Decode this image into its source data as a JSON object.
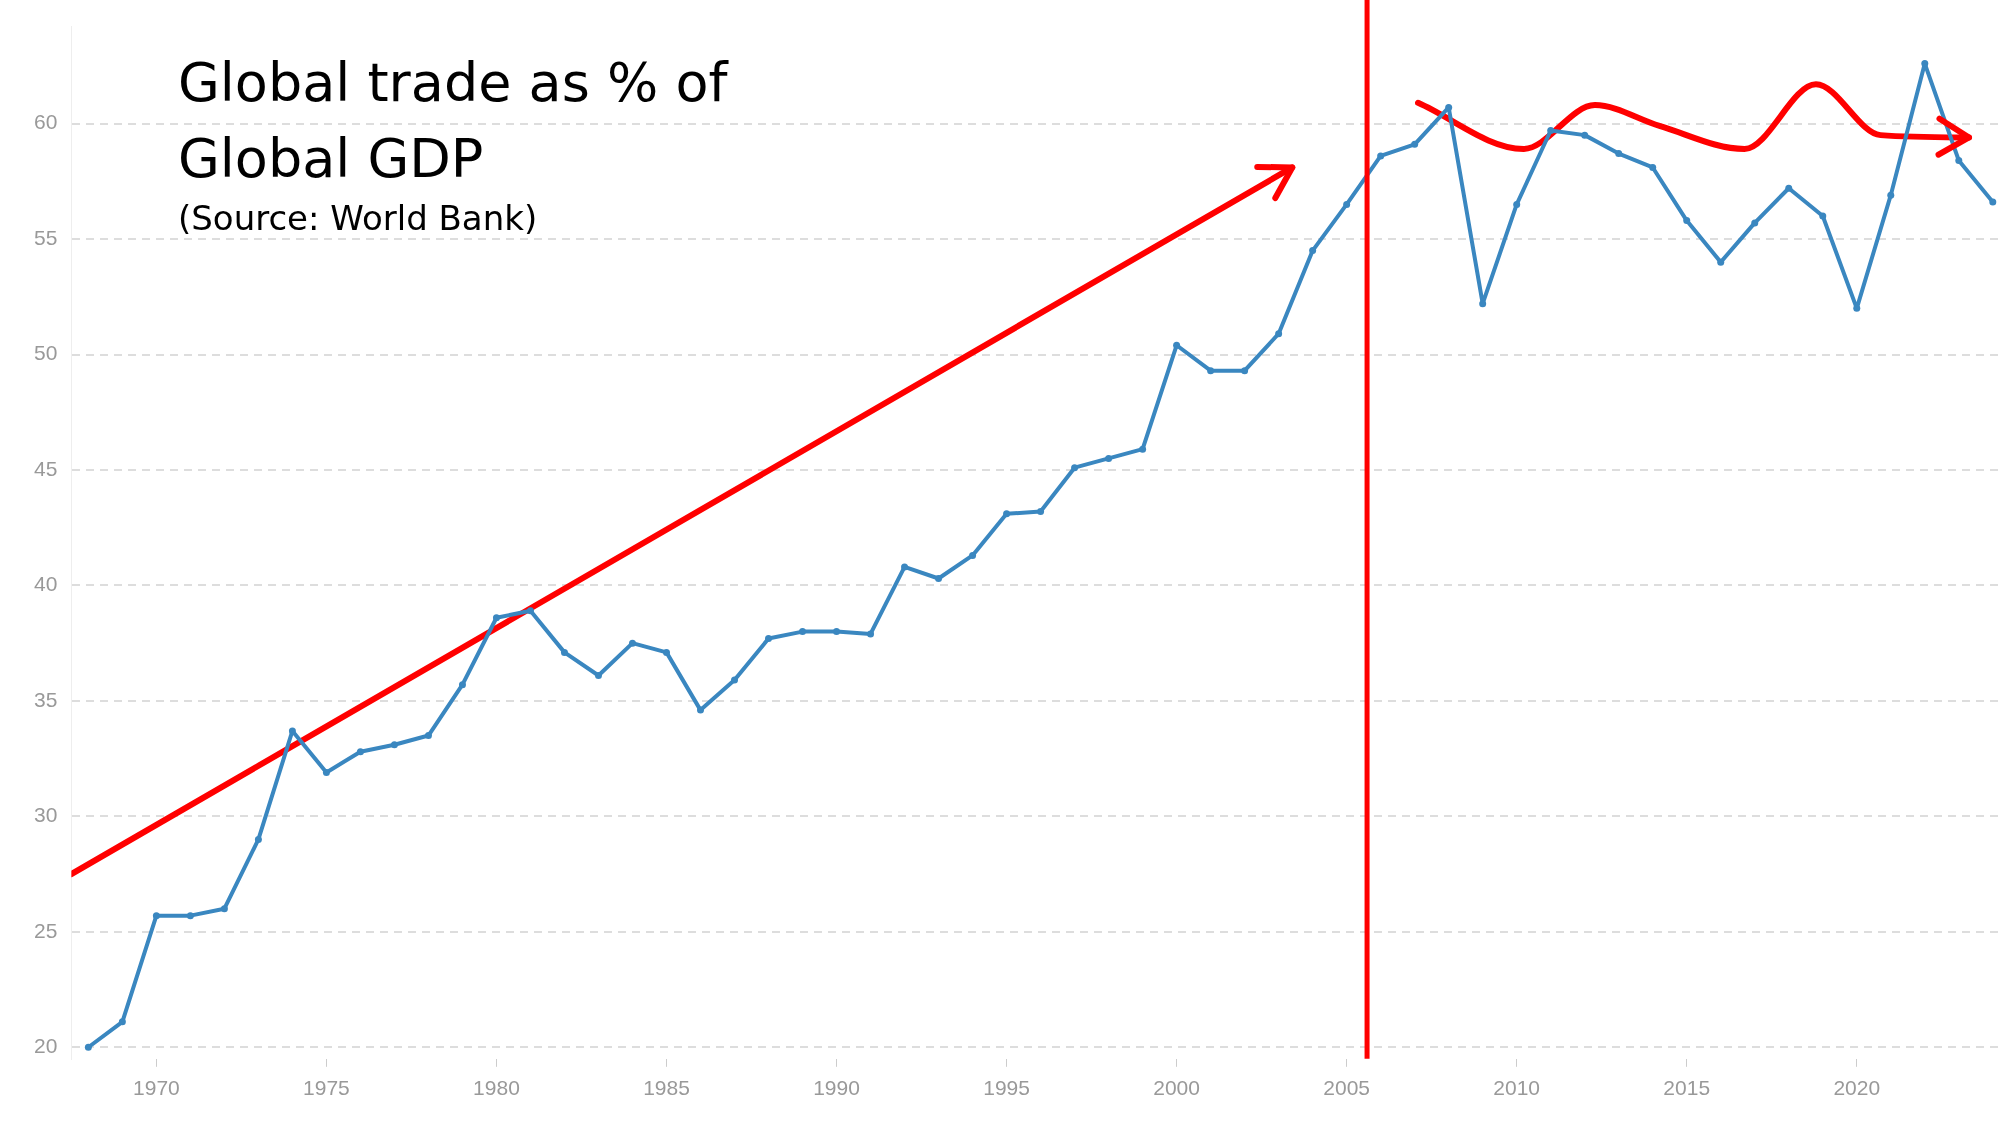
{
  "chart_data": {
    "type": "line",
    "title": "Global trade as % of Global GDP",
    "annotations": [
      "(Source: World Bank)"
    ],
    "x": [
      1968,
      1969,
      1970,
      1971,
      1972,
      1973,
      1974,
      1975,
      1976,
      1977,
      1978,
      1979,
      1980,
      1981,
      1982,
      1983,
      1984,
      1985,
      1986,
      1987,
      1988,
      1989,
      1990,
      1991,
      1992,
      1993,
      1994,
      1995,
      1996,
      1997,
      1998,
      1999,
      2000,
      2001,
      2002,
      2003,
      2004,
      2005,
      2006,
      2007,
      2008,
      2009,
      2010,
      2011,
      2012,
      2013,
      2014,
      2015,
      2016,
      2017,
      2018,
      2019,
      2020,
      2021,
      2022,
      2023,
      2024
    ],
    "series": [
      {
        "color": "#3a87c0",
        "values": [
          20.0,
          21.1,
          25.7,
          25.7,
          26.0,
          29.0,
          33.7,
          31.9,
          32.8,
          33.1,
          33.5,
          35.7,
          38.6,
          38.9,
          37.1,
          36.1,
          37.5,
          37.1,
          34.6,
          35.9,
          37.7,
          38.0,
          38.0,
          37.9,
          40.8,
          40.3,
          41.3,
          43.1,
          43.2,
          45.1,
          45.5,
          45.9,
          50.4,
          49.3,
          49.3,
          50.9,
          54.5,
          56.5,
          58.6,
          59.1,
          60.7,
          52.2,
          56.5,
          59.7,
          59.5,
          58.7,
          58.1,
          55.8,
          54.0,
          55.7,
          57.2,
          56.0,
          52.0,
          56.9,
          62.6,
          58.4,
          56.6
        ]
      },
      {
        "type": "line",
        "color": "#ff0000",
        "marker": "none",
        "x": [
          1967.5,
          2003.4
        ],
        "values": [
          27.5,
          58.1
        ]
      },
      {
        "type": "line",
        "color": "#ff0000",
        "marker": "none",
        "x": [
          2007.1,
          2010.2,
          2012.3,
          2014.2,
          2016.7,
          2018.8,
          2020.7,
          2023.3
        ],
        "values": [
          60.9,
          58.9,
          60.8,
          59.9,
          58.9,
          61.7,
          59.5,
          59.4
        ]
      }
    ],
    "xlim": [
      1967.5,
      2024.3
    ],
    "xticks": [
      1970,
      1975,
      1980,
      1985,
      1990,
      1995,
      2000,
      2005,
      2010,
      2015,
      2020
    ],
    "ylim": [
      19.5,
      64.2
    ],
    "yticks": [
      20,
      25,
      30,
      35,
      40,
      45,
      50,
      55,
      60
    ],
    "ref_lines": [
      {
        "axis": "x",
        "value": 2005.6,
        "color": "#ff0000"
      }
    ],
    "grid": "y",
    "legend": false,
    "marker": "circle",
    "line_style": "solid"
  }
}
